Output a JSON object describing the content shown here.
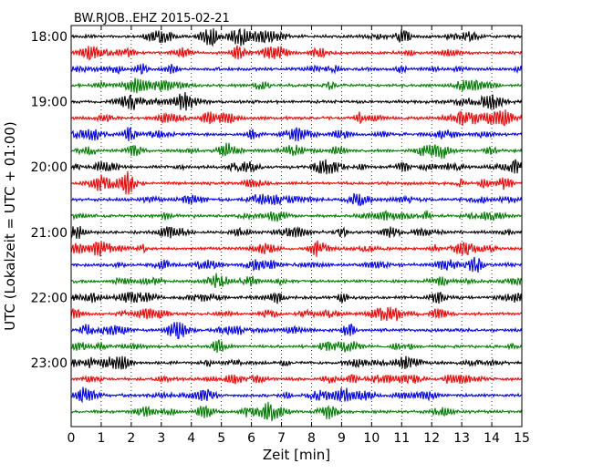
{
  "chart_data": {
    "type": "line",
    "title": "BW.RJOB..EHZ 2015-02-21",
    "xlabel": "Zeit  [min]",
    "ylabel": "UTC (Lokalzeit = UTC + 01:00)",
    "xlim": [
      0,
      15
    ],
    "xticks": [
      "0",
      "1",
      "2",
      "3",
      "4",
      "5",
      "6",
      "7",
      "8",
      "9",
      "10",
      "11",
      "12",
      "13",
      "14",
      "15"
    ],
    "ytick_labels": [
      "18:00",
      "19:00",
      "20:00",
      "21:00",
      "22:00",
      "23:00"
    ],
    "trace_start_minutes": [
      0,
      15,
      30,
      45,
      60,
      75,
      90,
      105,
      120,
      135,
      150,
      165,
      180,
      195,
      210,
      225,
      240,
      255,
      270,
      285,
      300,
      315,
      330,
      345
    ],
    "trace_colors": [
      "#000000",
      "#ff0000",
      "#0000ff",
      "#008000"
    ],
    "grid": "vertical dotted at each minute",
    "legend": "none"
  }
}
